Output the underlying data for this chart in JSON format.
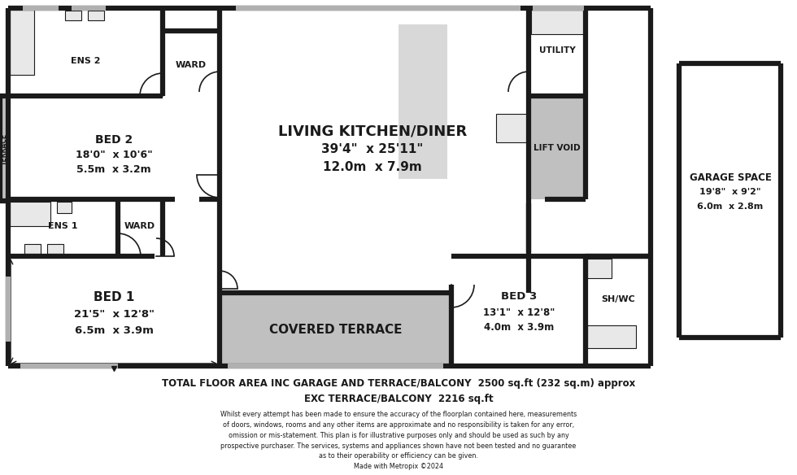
{
  "bg_color": "#ffffff",
  "wall_color": "#1a1a1a",
  "room_fill": "#ffffff",
  "gray_fill": "#c0c0c0",
  "light_gray_fill": "#d8d8d8",
  "footer_line1": "TOTAL FLOOR AREA INC GARAGE AND TERRACE/BALCONY  2500 sq.ft (232 sq.m) approx",
  "footer_line2": "EXC TERRACE/BALCONY  2216 sq.ft",
  "footer_disclaimer": "Whilst every attempt has been made to ensure the accuracy of the floorplan contained here, measurements\nof doors, windows, rooms and any other items are approximate and no responsibility is taken for any error,\nomission or mis-statement. This plan is for illustrative purposes only and should be used as such by any\nprospective purchaser. The services, systems and appliances shown have not been tested and no guarantee\nas to their operability or efficiency can be given.\nMade with Metropix ©2024"
}
